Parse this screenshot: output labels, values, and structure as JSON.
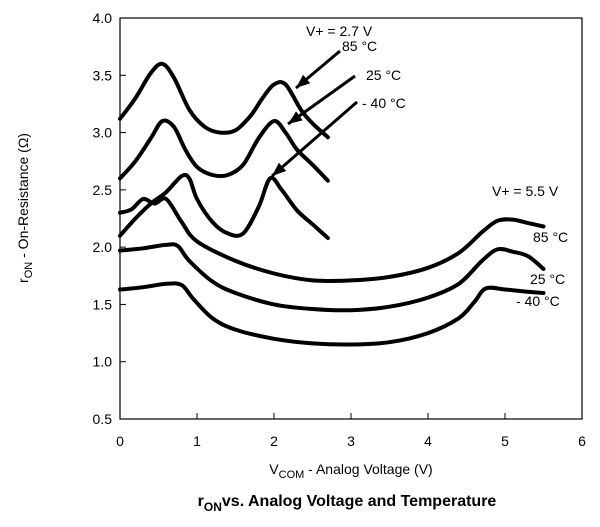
{
  "chart_data": {
    "type": "line",
    "title": "vs. Analog Voltage and Temperature",
    "title_symbol": {
      "main": "r",
      "sub": "ON"
    },
    "xlabel": {
      "sym_main": "V",
      "sym_sub": "COM",
      "text": " - Analog Voltage (V)"
    },
    "ylabel": {
      "sym_main": "r",
      "sym_sub": "ON",
      "text": " - On-Resistance (Ω)"
    },
    "xlim": [
      0,
      6
    ],
    "ylim": [
      0.5,
      4.0
    ],
    "x_ticks": [
      "0",
      "1",
      "2",
      "3",
      "4",
      "5",
      "6"
    ],
    "y_ticks": [
      "0.5",
      "1.0",
      "1.5",
      "2.0",
      "2.5",
      "3.0",
      "3.5",
      "4.0"
    ],
    "grid": false,
    "series": [
      {
        "name": "V+ = 2.7 V, 85 °C",
        "x": [
          0,
          0.2,
          0.4,
          0.55,
          0.7,
          0.9,
          1.1,
          1.3,
          1.5,
          1.7,
          1.85,
          2.0,
          2.15,
          2.35,
          2.5,
          2.7
        ],
        "y": [
          3.12,
          3.3,
          3.52,
          3.6,
          3.48,
          3.2,
          3.05,
          3.0,
          3.02,
          3.15,
          3.3,
          3.42,
          3.42,
          3.2,
          3.08,
          2.96
        ]
      },
      {
        "name": "V+ = 2.7 V, 25 °C",
        "x": [
          0,
          0.2,
          0.4,
          0.55,
          0.7,
          0.85,
          1.0,
          1.2,
          1.4,
          1.6,
          1.8,
          2.0,
          2.15,
          2.3,
          2.5,
          2.7
        ],
        "y": [
          2.6,
          2.75,
          2.95,
          3.1,
          3.05,
          2.85,
          2.7,
          2.63,
          2.63,
          2.72,
          2.95,
          3.1,
          3.0,
          2.85,
          2.72,
          2.58
        ]
      },
      {
        "name": "V+ = 2.7 V, -40 °C",
        "x": [
          0,
          0.2,
          0.4,
          0.6,
          0.8,
          0.9,
          1.0,
          1.2,
          1.4,
          1.6,
          1.8,
          1.95,
          2.1,
          2.3,
          2.5,
          2.7
        ],
        "y": [
          2.1,
          2.25,
          2.38,
          2.48,
          2.62,
          2.6,
          2.42,
          2.22,
          2.12,
          2.12,
          2.35,
          2.6,
          2.5,
          2.32,
          2.2,
          2.08
        ]
      },
      {
        "name": "V+ = 5.5 V, 85 °C",
        "x": [
          0,
          0.15,
          0.3,
          0.45,
          0.6,
          0.8,
          1.0,
          1.5,
          2.0,
          2.5,
          3.0,
          3.5,
          4.0,
          4.4,
          4.7,
          4.9,
          5.1,
          5.3,
          5.5
        ],
        "y": [
          2.3,
          2.33,
          2.42,
          2.38,
          2.42,
          2.22,
          2.05,
          1.88,
          1.77,
          1.71,
          1.71,
          1.74,
          1.82,
          1.95,
          2.13,
          2.23,
          2.24,
          2.21,
          2.18
        ]
      },
      {
        "name": "V+ = 5.5 V, 25 °C",
        "x": [
          0,
          0.3,
          0.6,
          0.75,
          0.9,
          1.2,
          1.5,
          2.0,
          2.5,
          3.0,
          3.5,
          4.0,
          4.4,
          4.7,
          4.9,
          5.1,
          5.3,
          5.5
        ],
        "y": [
          1.97,
          1.99,
          2.02,
          2.01,
          1.88,
          1.7,
          1.6,
          1.5,
          1.46,
          1.45,
          1.48,
          1.56,
          1.68,
          1.88,
          1.98,
          1.96,
          1.92,
          1.81
        ]
      },
      {
        "name": "V+ = 5.5 V, -40 °C",
        "x": [
          0,
          0.3,
          0.6,
          0.8,
          0.95,
          1.2,
          1.5,
          2.0,
          2.5,
          3.0,
          3.5,
          4.0,
          4.4,
          4.6,
          4.75,
          5.0,
          5.3,
          5.5
        ],
        "y": [
          1.63,
          1.65,
          1.68,
          1.67,
          1.55,
          1.38,
          1.28,
          1.2,
          1.16,
          1.15,
          1.17,
          1.25,
          1.38,
          1.52,
          1.64,
          1.63,
          1.61,
          1.6
        ]
      }
    ],
    "annotations": [
      {
        "text": "V+ = 2.7 V"
      },
      {
        "text": "85 °C"
      },
      {
        "text": "25 °C"
      },
      {
        "text": "- 40 °C"
      },
      {
        "text": "V+ = 5.5 V"
      },
      {
        "text": "85 °C"
      },
      {
        "text": "25 °C"
      },
      {
        "text": "- 40 °C"
      }
    ]
  }
}
